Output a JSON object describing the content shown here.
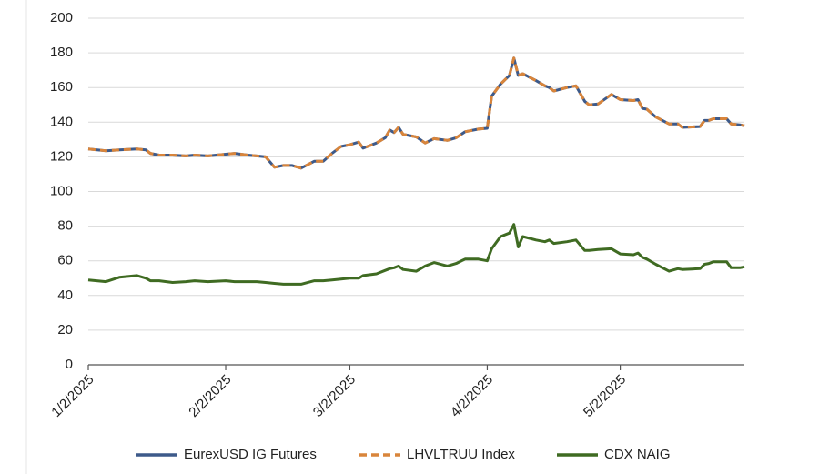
{
  "chart_data": {
    "type": "line",
    "x": [
      "2025-01-02",
      "2025-01-06",
      "2025-01-09",
      "2025-01-13",
      "2025-01-15",
      "2025-01-16",
      "2025-01-18",
      "2025-01-21",
      "2025-01-24",
      "2025-01-26",
      "2025-01-29",
      "2025-02-02",
      "2025-02-04",
      "2025-02-07",
      "2025-02-09",
      "2025-02-11",
      "2025-02-13",
      "2025-02-15",
      "2025-02-17",
      "2025-02-19",
      "2025-02-22",
      "2025-02-24",
      "2025-02-26",
      "2025-02-28",
      "2025-03-02",
      "2025-03-04",
      "2025-03-05",
      "2025-03-08",
      "2025-03-10",
      "2025-03-11",
      "2025-03-12",
      "2025-03-13",
      "2025-03-14",
      "2025-03-17",
      "2025-03-19",
      "2025-03-21",
      "2025-03-24",
      "2025-03-26",
      "2025-03-28",
      "2025-03-31",
      "2025-04-02",
      "2025-04-03",
      "2025-04-05",
      "2025-04-07",
      "2025-04-08",
      "2025-04-09",
      "2025-04-10",
      "2025-04-13",
      "2025-04-15",
      "2025-04-16",
      "2025-04-17",
      "2025-04-20",
      "2025-04-22",
      "2025-04-24",
      "2025-04-25",
      "2025-04-27",
      "2025-04-30",
      "2025-05-02",
      "2025-05-05",
      "2025-05-06",
      "2025-05-07",
      "2025-05-08",
      "2025-05-10",
      "2025-05-13",
      "2025-05-15",
      "2025-05-16",
      "2025-05-20",
      "2025-05-21",
      "2025-05-22",
      "2025-05-23",
      "2025-05-26",
      "2025-05-27",
      "2025-05-29",
      "2025-05-30"
    ],
    "series": [
      {
        "name": "EurexUSD IG Futures",
        "color": "#3d5a8a",
        "dashed": false,
        "values": [
          124.5,
          123.5,
          124,
          124.5,
          124,
          122,
          121,
          121,
          120.5,
          121,
          120.5,
          121.5,
          122,
          121,
          120.5,
          120,
          114,
          115,
          115,
          113.5,
          117.5,
          117.5,
          122,
          126,
          127,
          128.5,
          125,
          128,
          131,
          135.5,
          134,
          137,
          133,
          131.5,
          128,
          130.5,
          129.5,
          131,
          134.5,
          136,
          136.5,
          155,
          162,
          167,
          177,
          167,
          168,
          164,
          161,
          160,
          158,
          160,
          161,
          152,
          150,
          150.5,
          156,
          153,
          152.5,
          153,
          148,
          147.5,
          143,
          139,
          139,
          137,
          137.5,
          141,
          141,
          142,
          142,
          139,
          138.5,
          138
        ]
      },
      {
        "name": "LHVLTRUU Index",
        "color": "#d9853b",
        "dashed": true,
        "values": [
          124.5,
          123.5,
          124,
          124.5,
          124,
          122,
          121,
          121,
          120.5,
          121,
          120.5,
          121.5,
          122,
          121,
          120.5,
          120,
          114,
          115,
          115,
          113.5,
          117.5,
          117.5,
          122,
          126,
          127,
          128.5,
          125,
          128,
          131,
          135.5,
          134,
          137,
          133,
          131.5,
          128,
          130.5,
          129.5,
          131,
          134.5,
          136,
          136.5,
          155,
          162,
          167,
          177,
          167,
          168,
          164,
          161,
          160,
          158,
          160,
          161,
          152,
          150,
          150.5,
          156,
          153,
          152.5,
          153,
          148,
          147.5,
          143,
          139,
          139,
          137,
          137.5,
          141,
          141,
          142,
          142,
          139,
          138.5,
          138
        ]
      },
      {
        "name": "CDX NAIG",
        "color": "#3f6b22",
        "dashed": false,
        "values": [
          49,
          48,
          50.5,
          51.5,
          50,
          48.5,
          48.5,
          47.5,
          48,
          48.5,
          48,
          48.5,
          48,
          48,
          48,
          47.5,
          47,
          46.5,
          46.5,
          46.5,
          48.5,
          48.5,
          49,
          49.5,
          50,
          50,
          51.5,
          52.5,
          54.5,
          55.5,
          56,
          57,
          55,
          54,
          57,
          59,
          57,
          58.5,
          61,
          61,
          60,
          67,
          74,
          76,
          81,
          68,
          74,
          72,
          71,
          72,
          70,
          71,
          72,
          66,
          66,
          66.5,
          67,
          64,
          63.5,
          64.5,
          62,
          61,
          58,
          54,
          55.5,
          55,
          55.5,
          58,
          58.5,
          59.5,
          59.5,
          56,
          56,
          56.5
        ]
      }
    ],
    "xlim": [
      "2025-01-02",
      "2025-05-30"
    ],
    "xticks": [
      {
        "value": "2025-01-02",
        "label": "1/2/2025"
      },
      {
        "value": "2025-02-02",
        "label": "2/2/2025"
      },
      {
        "value": "2025-03-02",
        "label": "3/2/2025"
      },
      {
        "value": "2025-04-02",
        "label": "4/2/2025"
      },
      {
        "value": "2025-05-02",
        "label": "5/2/2025"
      }
    ],
    "ylim": [
      0,
      200
    ],
    "yticks": [
      0,
      20,
      40,
      60,
      80,
      100,
      120,
      140,
      160,
      180,
      200
    ],
    "grid": true,
    "legend": "bottom"
  }
}
